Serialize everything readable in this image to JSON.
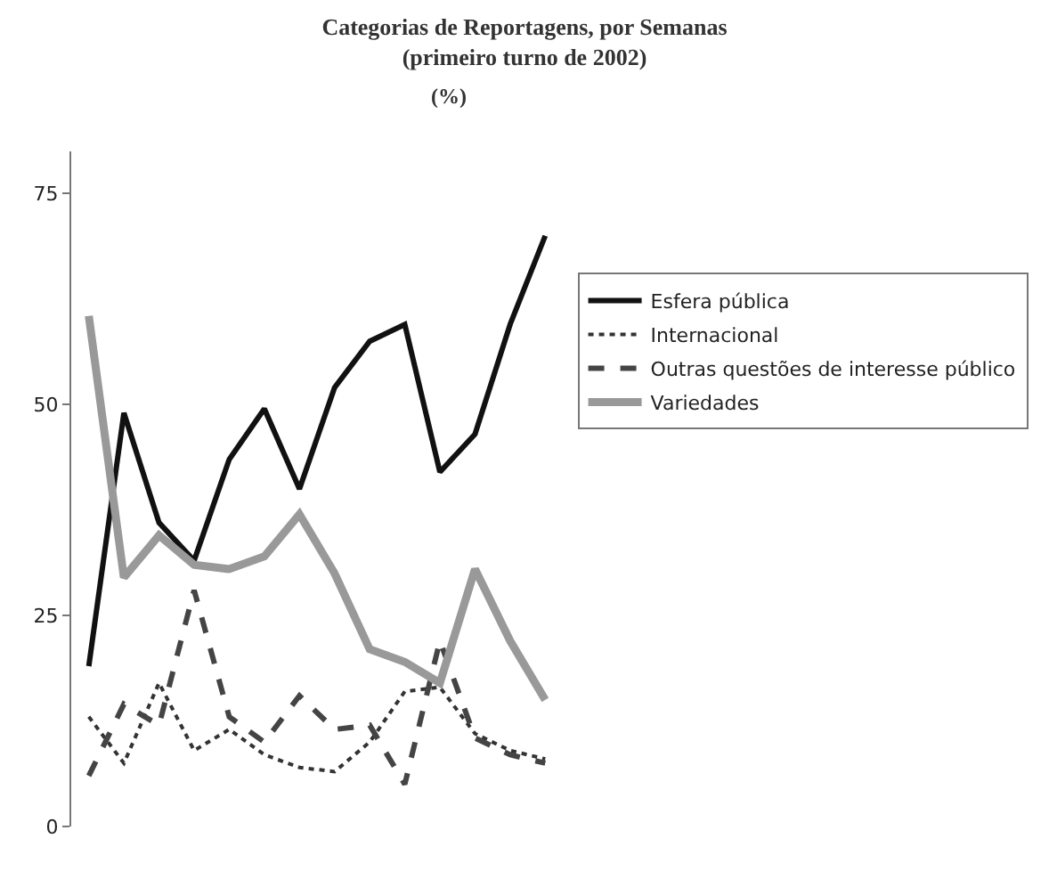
{
  "chart_data": {
    "type": "line",
    "title": "Categorias de Reportagens, por Semanas",
    "subtitle": "(primeiro turno de 2002)",
    "annotations": [
      "(%)"
    ],
    "categories": [
      null,
      null,
      null,
      null,
      null,
      null,
      null,
      null,
      null,
      null,
      null,
      null,
      null,
      null
    ],
    "ylim": [
      0,
      80
    ],
    "yticks": [
      0,
      25,
      50,
      75
    ],
    "legend": "right",
    "marker": "none",
    "series": [
      {
        "name": "Esfera pública",
        "color": "#111111",
        "line_style": "solid",
        "values": [
          19,
          49,
          36,
          31.5,
          43.5,
          49.5,
          40,
          52,
          57.5,
          59.5,
          42,
          46.5,
          59.5,
          70
        ]
      },
      {
        "name": "Internacional",
        "color": "#333333",
        "line_style": "dotted",
        "values": [
          13,
          7.5,
          17,
          9,
          11.5,
          8.5,
          7,
          6.5,
          10,
          16,
          16.5,
          11,
          9,
          8
        ]
      },
      {
        "name": "Outras questões de interesse público",
        "color": "#444444",
        "line_style": "dashed",
        "values": [
          6,
          14.5,
          12,
          28,
          13,
          10,
          15.5,
          11.5,
          12,
          5,
          22,
          10.5,
          8.5,
          7.5
        ]
      },
      {
        "name": "Variedades",
        "color": "#999999",
        "line_style": "solid",
        "values": [
          60.5,
          29.5,
          34.5,
          31,
          30.5,
          32,
          37,
          30,
          21,
          19.5,
          17,
          30.5,
          22,
          15
        ]
      }
    ]
  }
}
